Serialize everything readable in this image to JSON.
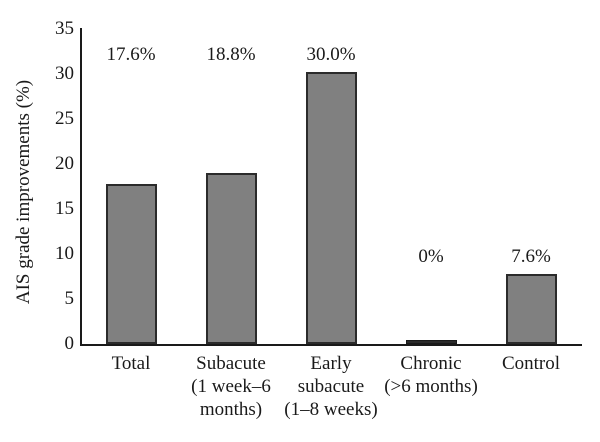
{
  "figure": {
    "background_color": "#ffffff",
    "axis_color": "#1a1a1a",
    "text_color": "#1a1a1a"
  },
  "chart_data": {
    "type": "bar",
    "title": "",
    "xlabel": "",
    "ylabel": "AIS grade improvements (%)",
    "ylim": [
      0,
      35
    ],
    "yticks": [
      0,
      5,
      10,
      15,
      20,
      25,
      30,
      35
    ],
    "grid": false,
    "legend": "none",
    "bar_color": "#808080",
    "bar_border_color": "#2b2b2b",
    "categories": [
      "Total",
      "Subacute (1 week–6 months)",
      "Early subacute (1–8 weeks)",
      "Chronic (>6 months)",
      "Control"
    ],
    "category_lines": [
      [
        "Total"
      ],
      [
        "Subacute",
        "(1 week–6",
        "months)"
      ],
      [
        "Early",
        "subacute",
        "(1–8 weeks)"
      ],
      [
        "Chronic",
        "(>6 months)"
      ],
      [
        "Control"
      ]
    ],
    "values": [
      17.6,
      18.8,
      30.0,
      0,
      7.6
    ],
    "value_labels": [
      "17.6%",
      "18.8%",
      "30.0%",
      "0%",
      "7.6%"
    ]
  }
}
